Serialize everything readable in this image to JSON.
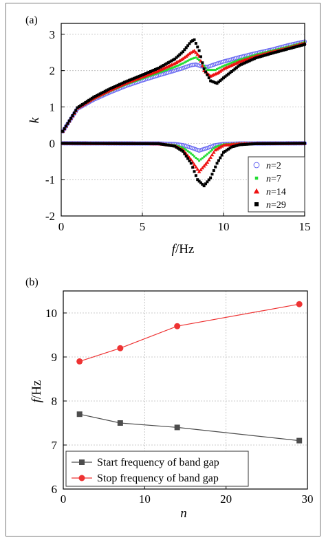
{
  "chart_data": [
    {
      "panel_label": "(a)",
      "type": "scatter",
      "xlabel_var": "f",
      "xlabel_unit": "/Hz",
      "ylabel": "k",
      "xlim": [
        0,
        15
      ],
      "ylim": [
        -2,
        3.3
      ],
      "xticks": [
        "0",
        "5",
        "10",
        "15"
      ],
      "yticks": [
        "-2",
        "-1",
        "0",
        "1",
        "2",
        "3"
      ],
      "grid": true,
      "legend_position": "bottom-right",
      "series": [
        {
          "name": "n=2",
          "name_var": "n",
          "name_value": "=2",
          "color": "#6a6af2",
          "marker": "circle-open",
          "upper": [
            [
              0.1,
              0.33
            ],
            [
              1,
              0.95
            ],
            [
              2,
              1.2
            ],
            [
              3,
              1.4
            ],
            [
              4,
              1.58
            ],
            [
              5,
              1.73
            ],
            [
              6,
              1.87
            ],
            [
              7,
              2.0
            ],
            [
              7.5,
              2.07
            ],
            [
              8,
              2.15
            ],
            [
              8.3,
              2.17
            ],
            [
              8.6,
              2.12
            ],
            [
              9,
              2.1
            ],
            [
              9.5,
              2.18
            ],
            [
              10,
              2.25
            ],
            [
              11,
              2.37
            ],
            [
              12,
              2.48
            ],
            [
              13,
              2.58
            ],
            [
              14,
              2.7
            ],
            [
              15,
              2.8
            ]
          ],
          "lower": [
            [
              0,
              0
            ],
            [
              6,
              -0.005
            ],
            [
              7,
              -0.02
            ],
            [
              7.5,
              -0.05
            ],
            [
              8,
              -0.12
            ],
            [
              8.5,
              -0.2
            ],
            [
              9,
              -0.13
            ],
            [
              9.5,
              -0.05
            ],
            [
              10,
              -0.02
            ],
            [
              11,
              -0.005
            ],
            [
              15,
              0
            ]
          ]
        },
        {
          "name": "n=7",
          "name_var": "n",
          "name_value": "=7",
          "color": "#22dd33",
          "marker": "square-small",
          "upper": [
            [
              0.1,
              0.33
            ],
            [
              1,
              0.96
            ],
            [
              2,
              1.22
            ],
            [
              3,
              1.43
            ],
            [
              4,
              1.62
            ],
            [
              5,
              1.78
            ],
            [
              6,
              1.94
            ],
            [
              7,
              2.1
            ],
            [
              7.5,
              2.2
            ],
            [
              8,
              2.32
            ],
            [
              8.3,
              2.36
            ],
            [
              8.6,
              2.25
            ],
            [
              9,
              2.02
            ],
            [
              9.5,
              2.02
            ],
            [
              10,
              2.13
            ],
            [
              11,
              2.3
            ],
            [
              12,
              2.44
            ],
            [
              13,
              2.55
            ],
            [
              14,
              2.66
            ],
            [
              15,
              2.78
            ]
          ],
          "lower": [
            [
              0,
              0
            ],
            [
              6,
              -0.01
            ],
            [
              7,
              -0.05
            ],
            [
              7.5,
              -0.12
            ],
            [
              8,
              -0.28
            ],
            [
              8.5,
              -0.48
            ],
            [
              9,
              -0.3
            ],
            [
              9.5,
              -0.1
            ],
            [
              10,
              -0.03
            ],
            [
              11,
              -0.01
            ],
            [
              15,
              0
            ]
          ]
        },
        {
          "name": "n=14",
          "name_var": "n",
          "name_value": "=14",
          "color": "#ee1111",
          "marker": "triangle",
          "upper": [
            [
              0.1,
              0.33
            ],
            [
              1,
              0.97
            ],
            [
              2,
              1.24
            ],
            [
              3,
              1.46
            ],
            [
              4,
              1.66
            ],
            [
              5,
              1.83
            ],
            [
              6,
              2.0
            ],
            [
              7,
              2.2
            ],
            [
              7.5,
              2.33
            ],
            [
              8,
              2.5
            ],
            [
              8.2,
              2.55
            ],
            [
              8.5,
              2.4
            ],
            [
              8.8,
              2.0
            ],
            [
              9.2,
              1.85
            ],
            [
              9.7,
              1.95
            ],
            [
              10,
              2.05
            ],
            [
              11,
              2.25
            ],
            [
              12,
              2.4
            ],
            [
              13,
              2.52
            ],
            [
              14,
              2.63
            ],
            [
              15,
              2.76
            ]
          ],
          "lower": [
            [
              0,
              0
            ],
            [
              6,
              -0.01
            ],
            [
              7,
              -0.07
            ],
            [
              7.5,
              -0.18
            ],
            [
              8,
              -0.45
            ],
            [
              8.5,
              -0.78
            ],
            [
              9,
              -0.52
            ],
            [
              9.5,
              -0.18
            ],
            [
              10,
              -0.05
            ],
            [
              11,
              -0.01
            ],
            [
              15,
              0
            ]
          ]
        },
        {
          "name": "n=29",
          "name_var": "n",
          "name_value": "=29",
          "color": "#000000",
          "marker": "square",
          "upper": [
            [
              0.1,
              0.33
            ],
            [
              1,
              0.98
            ],
            [
              2,
              1.27
            ],
            [
              3,
              1.5
            ],
            [
              4,
              1.7
            ],
            [
              5,
              1.88
            ],
            [
              6,
              2.07
            ],
            [
              7,
              2.32
            ],
            [
              7.5,
              2.52
            ],
            [
              8,
              2.8
            ],
            [
              8.2,
              2.85
            ],
            [
              8.5,
              2.55
            ],
            [
              8.8,
              2.05
            ],
            [
              9.2,
              1.72
            ],
            [
              9.6,
              1.65
            ],
            [
              10,
              1.8
            ],
            [
              11,
              2.15
            ],
            [
              12,
              2.35
            ],
            [
              13,
              2.48
            ],
            [
              14,
              2.6
            ],
            [
              15,
              2.72
            ]
          ],
          "lower": [
            [
              0,
              0
            ],
            [
              6,
              -0.01
            ],
            [
              7,
              -0.08
            ],
            [
              7.5,
              -0.22
            ],
            [
              8,
              -0.55
            ],
            [
              8.4,
              -1.0
            ],
            [
              8.8,
              -1.17
            ],
            [
              9.2,
              -0.95
            ],
            [
              9.6,
              -0.55
            ],
            [
              10,
              -0.25
            ],
            [
              10.5,
              -0.1
            ],
            [
              11,
              -0.04
            ],
            [
              12,
              -0.01
            ],
            [
              15,
              0
            ]
          ]
        }
      ]
    },
    {
      "panel_label": "(b)",
      "type": "line",
      "xlabel": "n",
      "ylabel_var": "f",
      "ylabel_unit": "/Hz",
      "xlim": [
        0,
        30
      ],
      "ylim": [
        6,
        10.5
      ],
      "xticks": [
        "0",
        "10",
        "20",
        "30"
      ],
      "yticks": [
        "6",
        "7",
        "8",
        "9",
        "10"
      ],
      "grid": true,
      "legend_position": "bottom-left",
      "x": [
        2,
        7,
        14,
        29
      ],
      "series": [
        {
          "name": "Start frequency of band gap",
          "color": "#4d4d4d",
          "marker": "square",
          "values": [
            7.7,
            7.5,
            7.4,
            7.1
          ]
        },
        {
          "name": "Stop frequency of band gap",
          "color": "#ee3333",
          "marker": "circle",
          "values": [
            8.9,
            9.2,
            9.7,
            10.2
          ]
        }
      ]
    }
  ]
}
